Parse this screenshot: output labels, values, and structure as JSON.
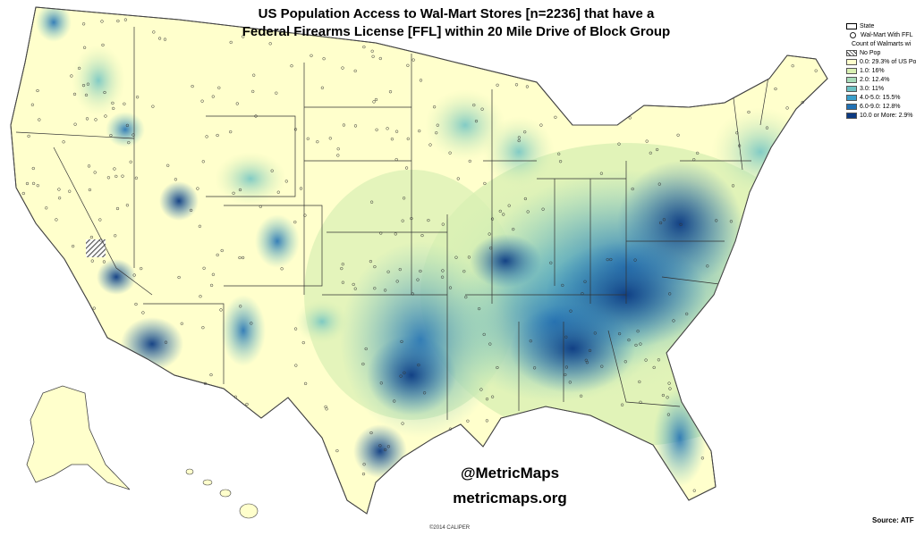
{
  "title": {
    "line1": "US Population Access to Wal-Mart Stores [n=2236] that have a",
    "line2": "Federal Firearms License [FFL] within 20 Mile Drive of Block Group"
  },
  "legend": {
    "state_label": "State",
    "walmart_label": "Wal-Mart With FFL",
    "count_heading": "Count of Walmarts wi",
    "nopop_label": "No Pop",
    "classes": [
      {
        "label": "0.0: 29.3% of US Po",
        "color": "#ffffcc"
      },
      {
        "label": "1.0: 16%",
        "color": "#d9f0b3"
      },
      {
        "label": "2.0: 12.4%",
        "color": "#a8dcba"
      },
      {
        "label": "3.0: 11%",
        "color": "#6cc2c4"
      },
      {
        "label": "4.0-5.0: 15.5%",
        "color": "#3a9fcb"
      },
      {
        "label": "6.0-9.0: 12.8%",
        "color": "#2171b5"
      },
      {
        "label": "10.0 or More: 2.9%",
        "color": "#0c3a82"
      }
    ]
  },
  "credit": {
    "handle": "@MetricMaps",
    "site": "metricmaps.org",
    "copyright": "©2014 CALIPER",
    "source": "Source:  ATF"
  }
}
